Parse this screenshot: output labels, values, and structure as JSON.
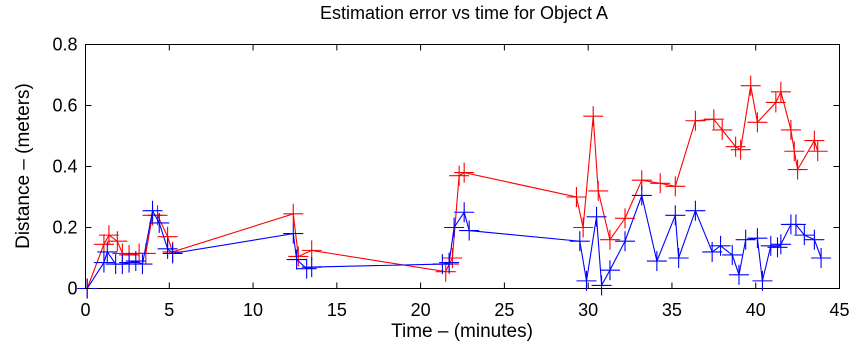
{
  "chart_data": {
    "type": "line",
    "title": "Estimation error vs time for Object A",
    "xlabel": "Time – (minutes)",
    "ylabel": "Distance – (meters)",
    "xlim": [
      0,
      45
    ],
    "ylim": [
      0,
      0.8
    ],
    "x_ticks": [
      "0",
      "5",
      "10",
      "15",
      "20",
      "25",
      "30",
      "35",
      "40",
      "45"
    ],
    "y_ticks": [
      "0",
      "0.2",
      "0.4",
      "0.6",
      "0.8"
    ],
    "grid": false,
    "legend": "none",
    "marker": "plus",
    "series": [
      {
        "color": "#ff0000",
        "points": [
          [
            0.1,
            0.0
          ],
          [
            1.1,
            0.145
          ],
          [
            1.4,
            0.175
          ],
          [
            1.9,
            0.155
          ],
          [
            2.2,
            0.115
          ],
          [
            2.6,
            0.11
          ],
          [
            3.2,
            0.115
          ],
          [
            3.6,
            0.115
          ],
          [
            4.0,
            0.24
          ],
          [
            4.3,
            0.24
          ],
          [
            4.9,
            0.17
          ],
          [
            5.2,
            0.12
          ],
          [
            12.4,
            0.245
          ],
          [
            12.7,
            0.105
          ],
          [
            13.5,
            0.125
          ],
          [
            21.5,
            0.055
          ],
          [
            21.7,
            0.08
          ],
          [
            21.9,
            0.1
          ],
          [
            22.3,
            0.37
          ],
          [
            22.6,
            0.38
          ],
          [
            29.3,
            0.3
          ],
          [
            29.7,
            0.2
          ],
          [
            30.3,
            0.565
          ],
          [
            30.6,
            0.32
          ],
          [
            31.3,
            0.16
          ],
          [
            32.2,
            0.23
          ],
          [
            33.2,
            0.355
          ],
          [
            34.3,
            0.345
          ],
          [
            35.2,
            0.335
          ],
          [
            36.4,
            0.55
          ],
          [
            37.5,
            0.555
          ],
          [
            38.0,
            0.52
          ],
          [
            38.8,
            0.465
          ],
          [
            39.1,
            0.455
          ],
          [
            39.7,
            0.665
          ],
          [
            40.1,
            0.545
          ],
          [
            41.2,
            0.61
          ],
          [
            41.5,
            0.645
          ],
          [
            42.1,
            0.52
          ],
          [
            42.3,
            0.45
          ],
          [
            42.5,
            0.39
          ],
          [
            43.5,
            0.485
          ],
          [
            43.7,
            0.45
          ]
        ]
      },
      {
        "color": "#0000ff",
        "points": [
          [
            0.1,
            0.0
          ],
          [
            1.1,
            0.085
          ],
          [
            1.3,
            0.12
          ],
          [
            1.8,
            0.08
          ],
          [
            2.2,
            0.08
          ],
          [
            2.6,
            0.085
          ],
          [
            3.0,
            0.09
          ],
          [
            3.4,
            0.08
          ],
          [
            4.0,
            0.255
          ],
          [
            4.4,
            0.215
          ],
          [
            4.9,
            0.13
          ],
          [
            5.2,
            0.115
          ],
          [
            12.4,
            0.18
          ],
          [
            12.6,
            0.095
          ],
          [
            13.2,
            0.065
          ],
          [
            13.5,
            0.07
          ],
          [
            21.3,
            0.08
          ],
          [
            21.7,
            0.085
          ],
          [
            22.0,
            0.2
          ],
          [
            22.6,
            0.25
          ],
          [
            22.9,
            0.19
          ],
          [
            29.5,
            0.155
          ],
          [
            29.9,
            0.025
          ],
          [
            30.5,
            0.235
          ],
          [
            30.8,
            0.01
          ],
          [
            31.3,
            0.06
          ],
          [
            32.2,
            0.155
          ],
          [
            33.2,
            0.305
          ],
          [
            34.1,
            0.09
          ],
          [
            35.2,
            0.24
          ],
          [
            35.4,
            0.1
          ],
          [
            36.4,
            0.255
          ],
          [
            37.4,
            0.12
          ],
          [
            37.9,
            0.14
          ],
          [
            38.6,
            0.11
          ],
          [
            39.0,
            0.045
          ],
          [
            39.4,
            0.16
          ],
          [
            40.1,
            0.165
          ],
          [
            40.4,
            0.025
          ],
          [
            40.9,
            0.14
          ],
          [
            41.3,
            0.135
          ],
          [
            41.5,
            0.145
          ],
          [
            42.1,
            0.21
          ],
          [
            42.4,
            0.21
          ],
          [
            42.9,
            0.175
          ],
          [
            43.5,
            0.16
          ],
          [
            43.9,
            0.1
          ]
        ]
      }
    ]
  }
}
